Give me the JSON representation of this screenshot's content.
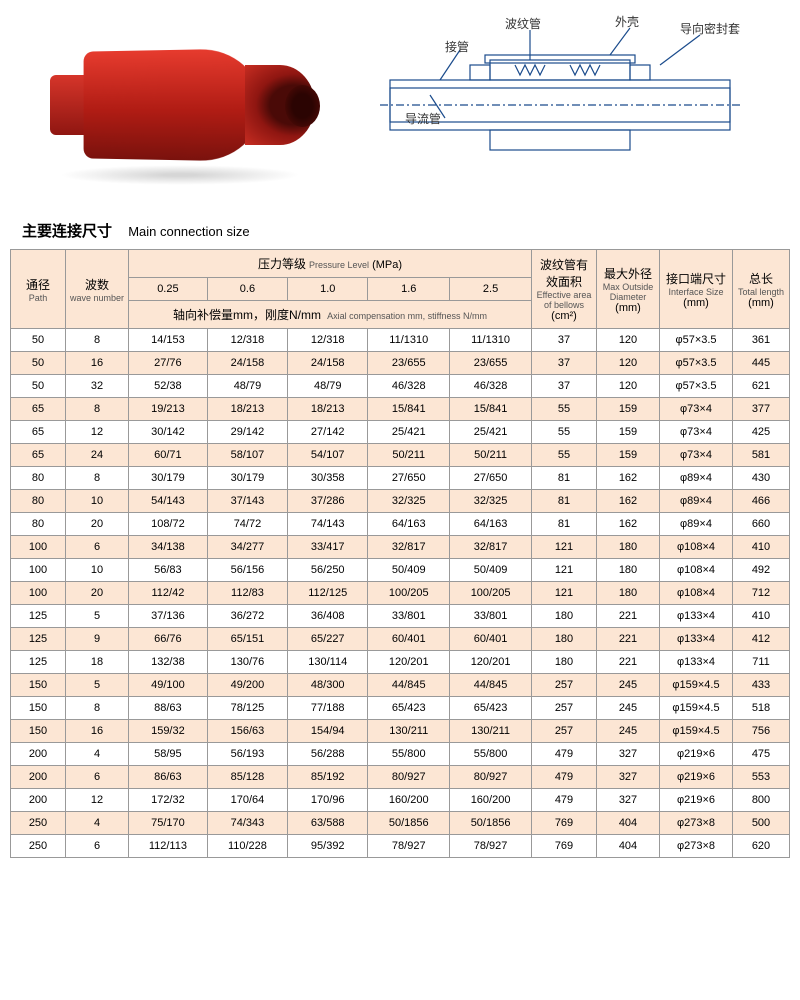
{
  "diagram_labels": {
    "jieguan": "接管",
    "bowen": "波纹管",
    "waike": "外壳",
    "mifeng": "导向密封套",
    "daoliu": "导流管"
  },
  "section": {
    "cn": "主要连接尺寸",
    "en": "Main connection size"
  },
  "headers": {
    "path": {
      "cn": "通径",
      "en": "Path"
    },
    "wave": {
      "cn": "波数",
      "en": "wave number"
    },
    "pressure": {
      "cn": "压力等级",
      "en": "Pressure Level",
      "unit": "(MPa)"
    },
    "pressure_cols": [
      "0.25",
      "0.6",
      "1.0",
      "1.6",
      "2.5"
    ],
    "axial": {
      "cn": "轴向补偿量mm，刚度N/mm",
      "en": "Axial compensation mm, stiffness N/mm"
    },
    "effarea": {
      "cn": "波纹管有\n效面积",
      "en": "Effective area of bellows",
      "unit": "(cm²)"
    },
    "maxod": {
      "cn": "最大外径",
      "en": "Max Outside Diameter",
      "unit": "(mm)"
    },
    "iface": {
      "cn": "接口端尺寸",
      "en": "Interface Size",
      "unit": "(mm)"
    },
    "total": {
      "cn": "总长",
      "en": "Total length",
      "unit": "(mm)"
    }
  },
  "rows": [
    [
      "50",
      "8",
      "14/153",
      "12/318",
      "12/318",
      "11/1310",
      "11/1310",
      "37",
      "120",
      "φ57×3.5",
      "361"
    ],
    [
      "50",
      "16",
      "27/76",
      "24/158",
      "24/158",
      "23/655",
      "23/655",
      "37",
      "120",
      "φ57×3.5",
      "445"
    ],
    [
      "50",
      "32",
      "52/38",
      "48/79",
      "48/79",
      "46/328",
      "46/328",
      "37",
      "120",
      "φ57×3.5",
      "621"
    ],
    [
      "65",
      "8",
      "19/213",
      "18/213",
      "18/213",
      "15/841",
      "15/841",
      "55",
      "159",
      "φ73×4",
      "377"
    ],
    [
      "65",
      "12",
      "30/142",
      "29/142",
      "27/142",
      "25/421",
      "25/421",
      "55",
      "159",
      "φ73×4",
      "425"
    ],
    [
      "65",
      "24",
      "60/71",
      "58/107",
      "54/107",
      "50/211",
      "50/211",
      "55",
      "159",
      "φ73×4",
      "581"
    ],
    [
      "80",
      "8",
      "30/179",
      "30/179",
      "30/358",
      "27/650",
      "27/650",
      "81",
      "162",
      "φ89×4",
      "430"
    ],
    [
      "80",
      "10",
      "54/143",
      "37/143",
      "37/286",
      "32/325",
      "32/325",
      "81",
      "162",
      "φ89×4",
      "466"
    ],
    [
      "80",
      "20",
      "108/72",
      "74/72",
      "74/143",
      "64/163",
      "64/163",
      "81",
      "162",
      "φ89×4",
      "660"
    ],
    [
      "100",
      "6",
      "34/138",
      "34/277",
      "33/417",
      "32/817",
      "32/817",
      "121",
      "180",
      "φ108×4",
      "410"
    ],
    [
      "100",
      "10",
      "56/83",
      "56/156",
      "56/250",
      "50/409",
      "50/409",
      "121",
      "180",
      "φ108×4",
      "492"
    ],
    [
      "100",
      "20",
      "112/42",
      "112/83",
      "112/125",
      "100/205",
      "100/205",
      "121",
      "180",
      "φ108×4",
      "712"
    ],
    [
      "125",
      "5",
      "37/136",
      "36/272",
      "36/408",
      "33/801",
      "33/801",
      "180",
      "221",
      "φ133×4",
      "410"
    ],
    [
      "125",
      "9",
      "66/76",
      "65/151",
      "65/227",
      "60/401",
      "60/401",
      "180",
      "221",
      "φ133×4",
      "412"
    ],
    [
      "125",
      "18",
      "132/38",
      "130/76",
      "130/114",
      "120/201",
      "120/201",
      "180",
      "221",
      "φ133×4",
      "711"
    ],
    [
      "150",
      "5",
      "49/100",
      "49/200",
      "48/300",
      "44/845",
      "44/845",
      "257",
      "245",
      "φ159×4.5",
      "433"
    ],
    [
      "150",
      "8",
      "88/63",
      "78/125",
      "77/188",
      "65/423",
      "65/423",
      "257",
      "245",
      "φ159×4.5",
      "518"
    ],
    [
      "150",
      "16",
      "159/32",
      "156/63",
      "154/94",
      "130/211",
      "130/211",
      "257",
      "245",
      "φ159×4.5",
      "756"
    ],
    [
      "200",
      "4",
      "58/95",
      "56/193",
      "56/288",
      "55/800",
      "55/800",
      "479",
      "327",
      "φ219×6",
      "475"
    ],
    [
      "200",
      "6",
      "86/63",
      "85/128",
      "85/192",
      "80/927",
      "80/927",
      "479",
      "327",
      "φ219×6",
      "553"
    ],
    [
      "200",
      "12",
      "172/32",
      "170/64",
      "170/96",
      "160/200",
      "160/200",
      "479",
      "327",
      "φ219×6",
      "800"
    ],
    [
      "250",
      "4",
      "75/170",
      "74/343",
      "63/588",
      "50/1856",
      "50/1856",
      "769",
      "404",
      "φ273×8",
      "500"
    ],
    [
      "250",
      "6",
      "112/113",
      "110/228",
      "95/392",
      "78/927",
      "78/927",
      "769",
      "404",
      "φ273×8",
      "620"
    ]
  ],
  "colors": {
    "header_bg": "#fce6d4",
    "row_alt": "#fce6d4",
    "border": "#999999",
    "product_red": "#c72d22"
  }
}
